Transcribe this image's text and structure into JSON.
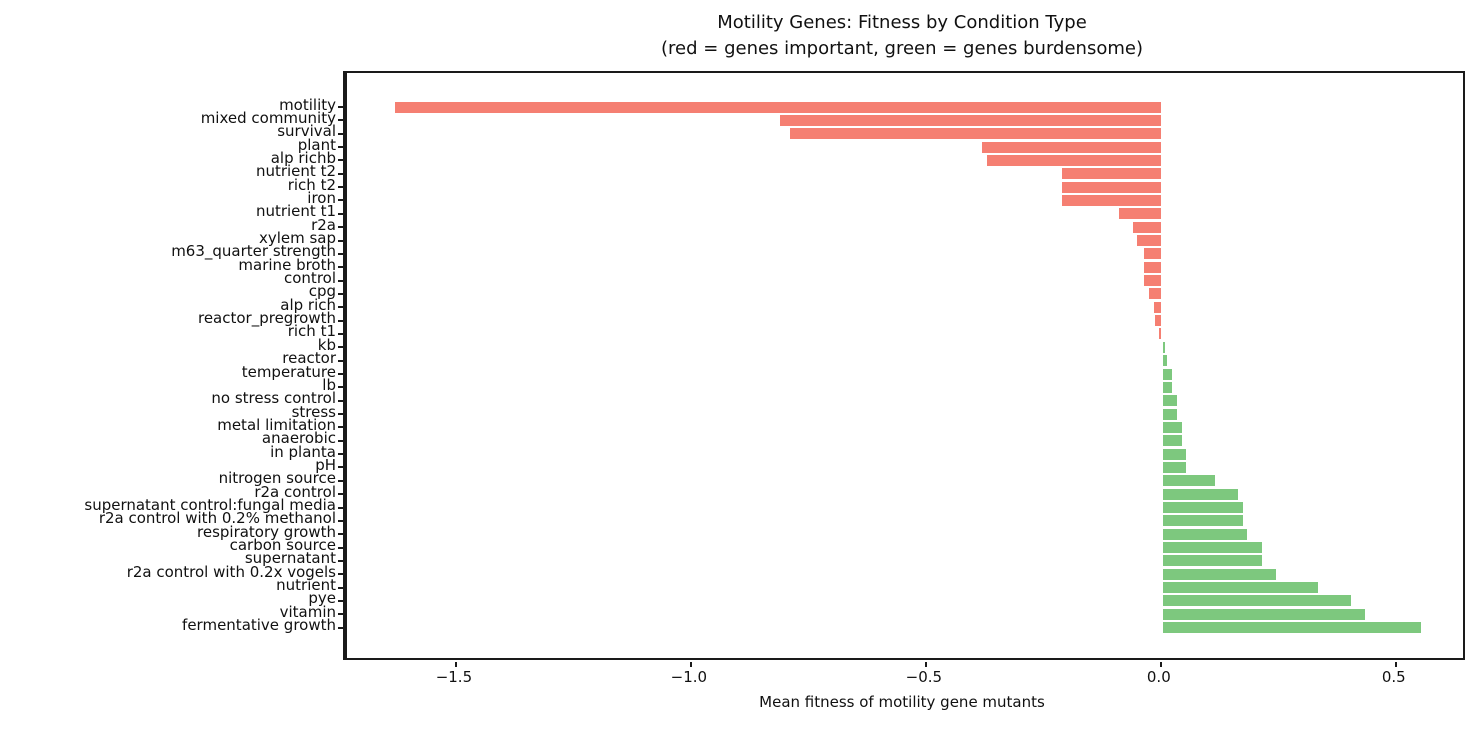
{
  "header": {
    "title_line1": "Motility Genes: Fitness by Condition Type",
    "title_line2": "(red = genes important, green = genes burdensome)"
  },
  "chart_data": {
    "type": "bar",
    "orientation": "horizontal",
    "title": "Motility Genes: Fitness by Condition Type\n(red = genes important, green = genes burdensome)",
    "xlabel": "Mean fitness of motility gene mutants",
    "ylabel": "",
    "categories": [
      "motility",
      "mixed community",
      "survival",
      "plant",
      "alp richb",
      "nutrient t2",
      "rich t2",
      "iron",
      "nutrient t1",
      "r2a",
      "xylem sap",
      "m63_quarter strength",
      "marine broth",
      "control",
      "cpg",
      "alp rich",
      "reactor_pregrowth",
      "rich t1",
      "kb",
      "reactor",
      "temperature",
      "lb",
      "no stress control",
      "stress",
      "metal limitation",
      "anaerobic",
      "in planta",
      "pH",
      "nitrogen source",
      "r2a control",
      "supernatant control:fungal media",
      "r2a control with 0.2% methanol",
      "respiratory growth",
      "carbon source",
      "supernatant",
      "r2a control with 0.2x vogels",
      "nutrient",
      "pye",
      "vitamin",
      "fermentative growth"
    ],
    "values": [
      -1.63,
      -0.81,
      -0.79,
      -0.38,
      -0.37,
      -0.21,
      -0.21,
      -0.21,
      -0.09,
      -0.06,
      -0.05,
      -0.036,
      -0.035,
      -0.035,
      -0.026,
      -0.014,
      -0.013,
      -0.004,
      0.004,
      0.009,
      0.019,
      0.02,
      0.03,
      0.03,
      0.04,
      0.04,
      0.049,
      0.05,
      0.11,
      0.16,
      0.17,
      0.17,
      0.18,
      0.21,
      0.21,
      0.24,
      0.33,
      0.4,
      0.43,
      0.55
    ],
    "colors": {
      "negative": "#f57f72",
      "positive": "#7dc87e"
    },
    "xlim": [
      -1.736,
      0.643
    ],
    "xticks": [
      -1.5,
      -1.0,
      -0.5,
      0.0,
      0.5
    ],
    "zero_line": true,
    "grid": false,
    "legend_position": "none"
  }
}
